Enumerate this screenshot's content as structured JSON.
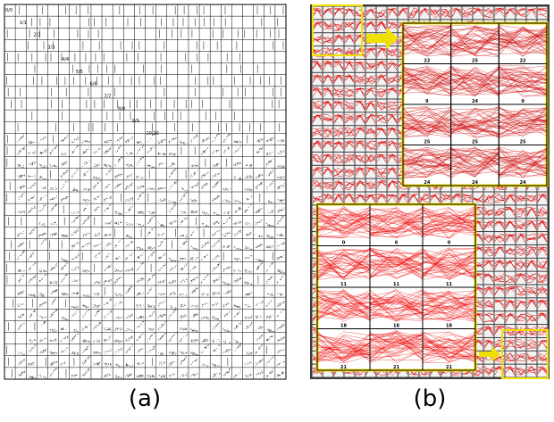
{
  "panel_a": {
    "caption": "(a)",
    "diagonal_labels": [
      "0/0",
      "1/1",
      "2/2",
      "3/3",
      "4/4",
      "5/5",
      "6/6",
      "7/7",
      "8/8",
      "9/9",
      "10/10"
    ]
  },
  "panel_b": {
    "caption": "(b)",
    "inset_top": {
      "axis_labels": [
        "22",
        "25",
        "22",
        "9",
        "24",
        "9",
        "25",
        "25",
        "25",
        "24",
        "24",
        "24"
      ]
    },
    "inset_bottom": {
      "axis_labels": [
        "0",
        "6",
        "0",
        "11",
        "11",
        "11",
        "18",
        "18",
        "18",
        "21",
        "21",
        "21"
      ]
    }
  }
}
